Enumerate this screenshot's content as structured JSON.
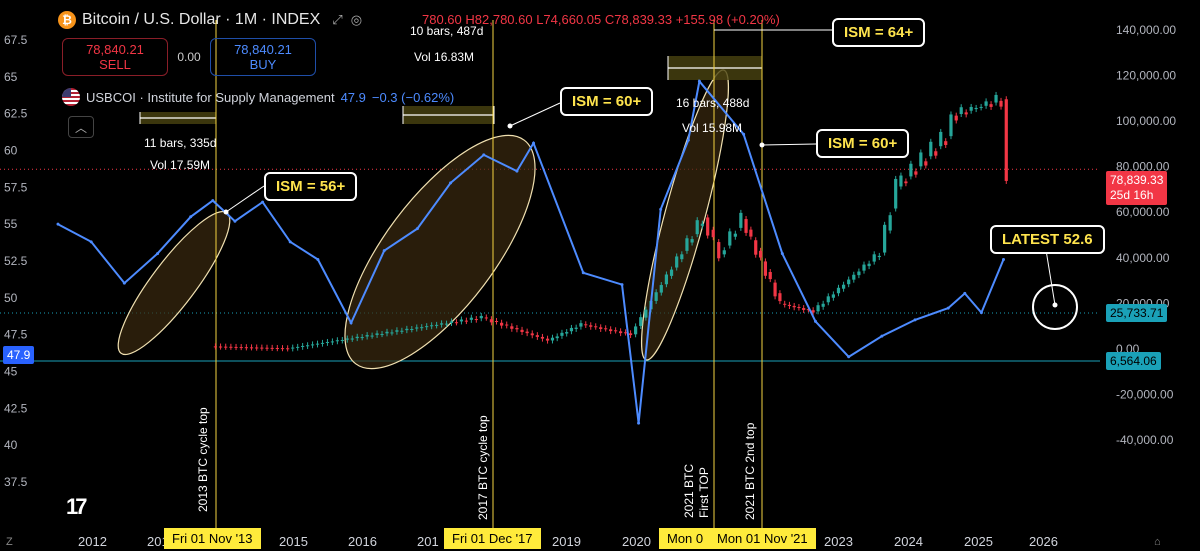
{
  "header": {
    "title": "Bitcoin / U.S. Dollar · 1M · INDEX",
    "btc_icon": "bitcoin-icon",
    "ohlc": "780.60 H82,780.60 L74,660.05 C78,839.33 +155.98 (+0.20%)"
  },
  "trade": {
    "sell_price": "78,840.21",
    "sell_label": "SELL",
    "spread": "0.00",
    "buy_price": "78,840.21",
    "buy_label": "BUY"
  },
  "indicator": {
    "name": "USBCOI · Institute for Supply Management",
    "value": "47.9",
    "change": "−0.3 (−0.62%)",
    "collapse_icon": "chevron-up-icon"
  },
  "price_tags": {
    "current_price": "78,839.33",
    "countdown": "25d 16h",
    "line_level": "25,733.71",
    "ism_level": "6,564.06",
    "ism_left": "47.9"
  },
  "callouts": {
    "ism56": "ISM = 56+",
    "ism60a": "ISM = 60+",
    "ism64": "ISM = 64+",
    "ism60b": "ISM = 60+",
    "latest": "LATEST 52.6"
  },
  "measures": {
    "m1_bars": "11 bars, 335d",
    "m1_vol": "Vol 17.59M",
    "m2_bars": "10 bars, 487d",
    "m2_vol": "Vol 16.83M",
    "m3_bars": "16 bars, 488d",
    "m3_vol": "Vol 15.98M"
  },
  "vlines": {
    "v1": "2013 BTC cycle top",
    "v2": "2017 BTC cycle top",
    "v3a": "2021 BTC",
    "v3b": "First TOP",
    "v4": "2021 BTC 2nd top"
  },
  "date_tags": {
    "d1": "Fri 01 Nov '13",
    "d2": "Fri 01 Dec '17",
    "d3": "Mon 0",
    "d4": "Mon 01 Nov '21"
  },
  "left_axis": [
    "67.5",
    "65",
    "62.5",
    "60",
    "57.5",
    "55",
    "52.5",
    "50",
    "47.5",
    "45",
    "42.5",
    "40",
    "37.5"
  ],
  "right_axis": [
    "140,000.00",
    "120,000.00",
    "100,000.00",
    "80,000.00",
    "60,000.00",
    "40,000.00",
    "20,000.00",
    "0.00",
    "-20,000.00",
    "-40,000.00"
  ],
  "x_axis": [
    "2012",
    "2013",
    "2015",
    "2016",
    "2017",
    "2019",
    "2020",
    "2021",
    "2023",
    "2024",
    "2025",
    "2026"
  ],
  "x_axis_partial": [
    "201",
    "201"
  ],
  "tv_logo": "17",
  "bottom": {
    "left": "Z",
    "right": "⌂"
  },
  "colors": {
    "ism_line": "#4d8bff",
    "up": "#26a69a",
    "down": "#f23645",
    "vline": "#f5d442",
    "ellipse_fill": "#3a2a10",
    "ellipse_stroke": "#f0e0b0"
  },
  "chart_data": {
    "type": "line",
    "series": [
      {
        "name": "USBCOI · Institute for Supply Management",
        "x": [
          "2011-07",
          "2012-01",
          "2012-07",
          "2013-01",
          "2013-07",
          "2013-11",
          "2014-03",
          "2014-08",
          "2015-01",
          "2015-06",
          "2015-12",
          "2016-06",
          "2016-12",
          "2017-06",
          "2017-12",
          "2018-06",
          "2018-09",
          "2019-06",
          "2020-01",
          "2020-04",
          "2020-08",
          "2021-01",
          "2021-03",
          "2021-11",
          "2022-06",
          "2022-12",
          "2023-06",
          "2023-12",
          "2024-06",
          "2024-12",
          "2025-03",
          "2025-06",
          "2025-10"
        ],
        "values": [
          55.0,
          53.8,
          51.0,
          53.0,
          55.5,
          56.6,
          55.2,
          56.5,
          53.8,
          52.6,
          48.3,
          53.2,
          54.7,
          57.8,
          59.7,
          58.6,
          60.5,
          51.7,
          50.9,
          41.5,
          56.0,
          60.7,
          64.7,
          61.1,
          53.0,
          48.4,
          46.0,
          47.4,
          48.5,
          49.3,
          50.3,
          49.0,
          52.6
        ]
      },
      {
        "name": "Bitcoin / U.S. Dollar",
        "x": [
          "2013-11",
          "2015-01",
          "2017-12",
          "2018-12",
          "2019-06",
          "2020-03",
          "2021-04",
          "2021-07",
          "2021-11",
          "2022-06",
          "2022-12",
          "2023-12",
          "2024-03",
          "2024-12",
          "2025-01",
          "2025-10",
          "2025-11"
        ],
        "values": [
          1100,
          210,
          13800,
          3700,
          10800,
          6400,
          57700,
          41500,
          57000,
          19800,
          16500,
          42300,
          71300,
          93400,
          102400,
          109600,
          78839
        ]
      }
    ],
    "left_ylim": [
      37.5,
      67.5
    ],
    "right_ylim": [
      -40000,
      140000
    ],
    "annotations": [
      "ISM = 56+",
      "ISM = 60+",
      "ISM = 64+",
      "ISM = 60+",
      "LATEST 52.6"
    ]
  }
}
